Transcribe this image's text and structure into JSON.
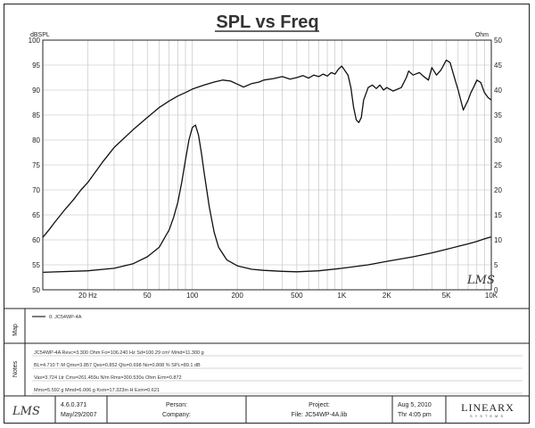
{
  "chart_data": {
    "type": "line",
    "title": "SPL vs Freq",
    "xscale": "log",
    "xlim": [
      10,
      10000
    ],
    "x_tick_labels": [
      "20 Hz",
      "50",
      "100",
      "200",
      "500",
      "1K",
      "2K",
      "5K",
      "10K"
    ],
    "x_tick_values": [
      20,
      50,
      100,
      200,
      500,
      1000,
      2000,
      5000,
      10000
    ],
    "y_left_label": "dBSPL",
    "y_left_lim": [
      50,
      100
    ],
    "y_left_ticks": [
      "100",
      "95",
      "90",
      "85",
      "80",
      "75",
      "70",
      "65",
      "60",
      "55",
      "50"
    ],
    "y_right_label": "Ohm",
    "y_right_lim": [
      0,
      50
    ],
    "y_right_ticks": [
      "50",
      "45",
      "40",
      "35",
      "30",
      "25",
      "20",
      "15",
      "10",
      "5",
      "0"
    ],
    "grid": true,
    "series": [
      {
        "axis": "left",
        "x": [
          10,
          11,
          12,
          14,
          16,
          18,
          20,
          25,
          30,
          40,
          50,
          60,
          70,
          80,
          90,
          100,
          120,
          140,
          160,
          180,
          200,
          220,
          250,
          280,
          300,
          350,
          400,
          450,
          500,
          550,
          600,
          650,
          700,
          750,
          800,
          850,
          900,
          950,
          1000,
          1100,
          1150,
          1200,
          1250,
          1300,
          1350,
          1400,
          1500,
          1600,
          1700,
          1800,
          1900,
          2000,
          2200,
          2500,
          2700,
          2800,
          3000,
          3300,
          3500,
          3800,
          4000,
          4300,
          4600,
          5000,
          5300,
          5600,
          6000,
          6500,
          7000,
          7300,
          7600,
          8000,
          8500,
          9000,
          9500,
          10000
        ],
        "values": [
          60.5,
          62.0,
          63.5,
          66.0,
          68.0,
          70.0,
          71.5,
          75.5,
          78.5,
          82.0,
          84.5,
          86.5,
          87.8,
          88.8,
          89.5,
          90.2,
          91.0,
          91.6,
          92.0,
          91.8,
          91.2,
          90.6,
          91.3,
          91.6,
          92.0,
          92.3,
          92.7,
          92.2,
          92.5,
          92.9,
          92.4,
          93.0,
          92.7,
          93.2,
          92.8,
          93.5,
          93.2,
          94.2,
          94.8,
          93.0,
          90.5,
          86.5,
          84.0,
          83.5,
          84.5,
          88.0,
          90.5,
          91.0,
          90.3,
          91.0,
          90.0,
          90.5,
          89.8,
          90.5,
          92.5,
          93.8,
          93.0,
          93.5,
          92.8,
          92.0,
          94.5,
          93.0,
          94.0,
          96.0,
          95.5,
          93.0,
          90.0,
          86.0,
          88.0,
          89.5,
          90.5,
          92.0,
          91.5,
          89.5,
          88.5,
          88.0
        ]
      },
      {
        "axis": "right",
        "x": [
          10,
          20,
          30,
          40,
          50,
          60,
          70,
          75,
          80,
          85,
          90,
          95,
          100,
          105,
          110,
          115,
          120,
          130,
          140,
          150,
          170,
          200,
          250,
          300,
          400,
          500,
          700,
          1000,
          1500,
          2000,
          3000,
          4000,
          5000,
          6000,
          7000,
          8000,
          9000,
          10000
        ],
        "values": [
          3.5,
          3.8,
          4.3,
          5.2,
          6.6,
          8.5,
          12.0,
          14.5,
          17.5,
          21.5,
          26.0,
          30.0,
          32.5,
          33.0,
          31.0,
          27.5,
          23.5,
          16.5,
          11.5,
          8.5,
          6.0,
          4.8,
          4.1,
          3.9,
          3.7,
          3.6,
          3.8,
          4.3,
          5.0,
          5.7,
          6.6,
          7.4,
          8.1,
          8.7,
          9.2,
          9.7,
          10.2,
          10.6
        ]
      }
    ]
  },
  "map": {
    "label": "Map",
    "legend_entry": "0: JC54WP-4A"
  },
  "notes": {
    "label": "Notes",
    "lines": [
      "JC54WP-4A  Revc=3.300 Ohm  Fo=106.240 Hz  Sd=100.29 cm²  Mmd=11.300 g",
      "BL=4.710 T·M  Qms=3.857  Qes=0.852  Qts=0.698  No=0.808 %  SPL=89.1 dB",
      "Vas=3.724 Ltr  Cms=261.459u N/m  Rms=300.530u Ohm  Erm=0.872",
      "Mms=5.592 g  Mmd=6.006 g  Kxm=17.323m H  Exm=0.621"
    ]
  },
  "footer": {
    "logo": "LMS",
    "version": "4.6.0.371",
    "date": "May/29/2007",
    "person_label": "Person:",
    "company_label": "Company:",
    "project_label": "Project:",
    "file_label": "File: JC54WP-4A.lib",
    "print_date": "Aug  5, 2010",
    "print_time": "Thr  4:05 pm",
    "brand": "LINEARX",
    "brand_sub": "SYSTEMS"
  },
  "watermark": "LMS"
}
